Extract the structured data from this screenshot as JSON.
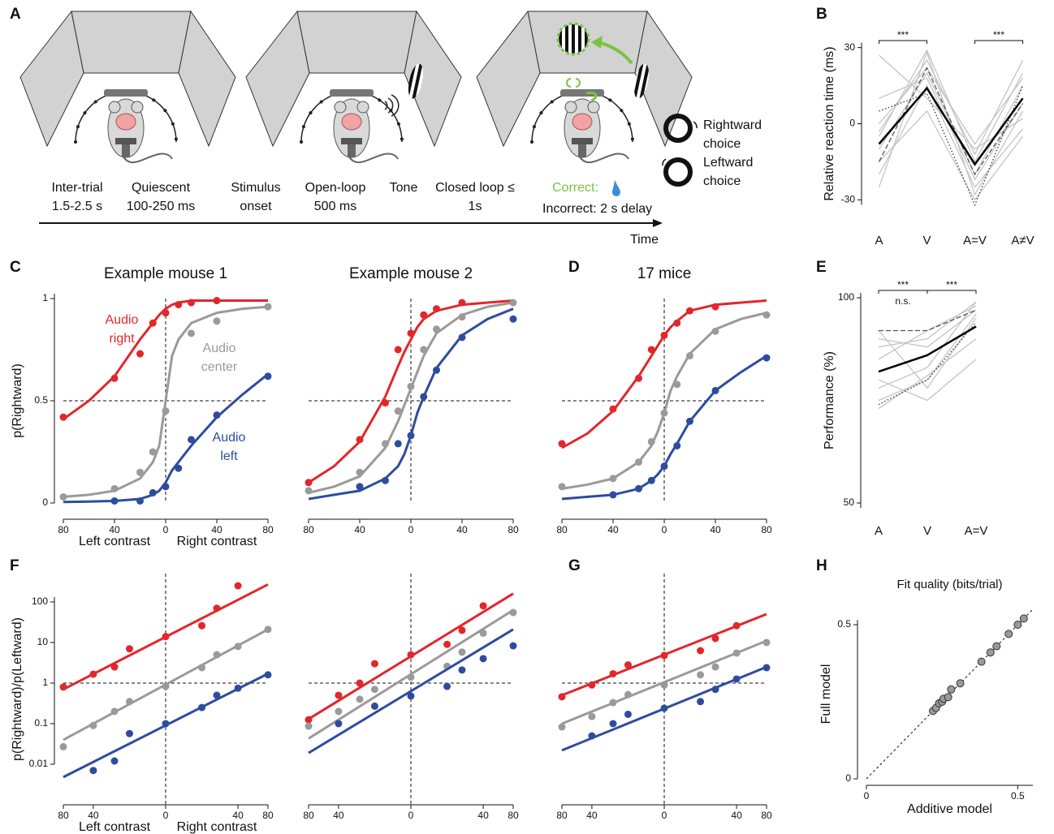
{
  "panel_a": {
    "label": "A",
    "timeline": [
      "Inter-trial 1.5-2.5 s",
      "Quiescent 100-250 ms",
      "Stimulus onset",
      "Open-loop 500 ms",
      "Tone",
      "Closed loop ≤ 1s"
    ],
    "correct": "Correct:",
    "incorrect": "Incorrect: 2 s delay",
    "time": "Time",
    "choices": [
      "Rightward choice",
      "Leftward choice"
    ]
  },
  "chart_data": [
    {
      "type": "line",
      "panel": "B",
      "y_label": "Relative reaction time (ms)",
      "categories": [
        "A",
        "V",
        "A=V",
        "A≠V"
      ],
      "ylim": [
        -35,
        35
      ],
      "yticks": [
        -30,
        0,
        30
      ],
      "annotations": [
        {
          "text": "***",
          "span": [
            0,
            1
          ]
        },
        {
          "text": "***",
          "span": [
            2,
            3
          ]
        }
      ],
      "series": [
        {
          "color": "#c4c4c4",
          "values": [
            -25,
            28,
            -28,
            5
          ]
        },
        {
          "color": "#c4c4c4",
          "values": [
            -10,
            20,
            -20,
            15
          ]
        },
        {
          "color": "#c4c4c4",
          "values": [
            -3,
            25,
            -12,
            25
          ]
        },
        {
          "color": "#c4c4c4",
          "values": [
            -15,
            5,
            -30,
            -5
          ]
        },
        {
          "color": "#c4c4c4",
          "values": [
            0,
            22,
            -8,
            18
          ]
        },
        {
          "color": "#c4c4c4",
          "values": [
            10,
            18,
            -22,
            8
          ]
        },
        {
          "color": "#c4c4c4",
          "values": [
            -5,
            29,
            -15,
            20
          ]
        },
        {
          "color": "#c4c4c4",
          "values": [
            27,
            10,
            -10,
            2
          ]
        },
        {
          "color": "#c4c4c4",
          "values": [
            -20,
            15,
            -25,
            -2
          ]
        },
        {
          "color": "#555555",
          "line_style": "dashed",
          "values": [
            -15,
            22,
            -20,
            8
          ]
        },
        {
          "color": "#333333",
          "line_style": "dotted",
          "values": [
            5,
            12,
            -32,
            15
          ]
        },
        {
          "color": "#000000",
          "line_width": 2.5,
          "values": [
            -8,
            14,
            -16,
            10
          ]
        }
      ]
    },
    {
      "type": "scatter",
      "panel": "C",
      "title": "Example mouse 1",
      "y_label": "p(Rightward)",
      "x_label_left": "Left contrast",
      "x_label_right": "Right contrast",
      "x": [
        -80,
        -40,
        -20,
        -10,
        0,
        10,
        20,
        40,
        80
      ],
      "fit_x": [
        -80,
        -60,
        -40,
        -20,
        -10,
        -5,
        0,
        5,
        10,
        20,
        40,
        60,
        80
      ],
      "xlim": [
        -80,
        80
      ],
      "xticks": [
        {
          "value": -80,
          "label": "80"
        },
        {
          "value": -40,
          "label": "40"
        },
        0,
        40,
        80
      ],
      "ylim": [
        0,
        1
      ],
      "yticks": [
        0,
        0.5,
        1
      ],
      "hline": 0.5,
      "vline": 0,
      "series": [
        {
          "name": "Audio right",
          "color": "#e3262b",
          "values": [
            0.42,
            0.61,
            0.73,
            0.88,
            0.93,
            0.97,
            0.98,
            0.99,
            null
          ],
          "fit": [
            0.41,
            0.5,
            0.62,
            0.8,
            0.88,
            0.92,
            0.95,
            0.97,
            0.98,
            0.99,
            0.99,
            0.99,
            0.99
          ]
        },
        {
          "name": "Audio center",
          "color": "#9a9a9a",
          "values": [
            0.03,
            0.07,
            0.15,
            0.25,
            0.45,
            null,
            0.83,
            0.89,
            0.96
          ],
          "fit": [
            0.03,
            0.04,
            0.06,
            0.12,
            0.2,
            0.28,
            0.5,
            0.72,
            0.8,
            0.88,
            0.93,
            0.95,
            0.96
          ]
        },
        {
          "name": "Audio left",
          "color": "#2e4c9f",
          "values": [
            null,
            0.01,
            0.01,
            0.05,
            0.08,
            0.17,
            0.31,
            0.43,
            0.62
          ],
          "fit": [
            0.005,
            0.007,
            0.01,
            0.02,
            0.04,
            0.06,
            0.1,
            0.16,
            0.2,
            0.28,
            0.42,
            0.53,
            0.63
          ]
        }
      ]
    },
    {
      "type": "scatter",
      "title": "Example mouse 2",
      "x": [
        -80,
        -40,
        -20,
        -10,
        0,
        10,
        20,
        40,
        80
      ],
      "fit_x": [
        -80,
        -60,
        -40,
        -20,
        -10,
        -5,
        0,
        5,
        10,
        20,
        40,
        60,
        80
      ],
      "xlim": [
        -80,
        80
      ],
      "xticks": [
        {
          "value": -80,
          "label": "80"
        },
        {
          "value": -40,
          "label": "40"
        },
        0,
        40,
        80
      ],
      "ylim": [
        0,
        1
      ],
      "hline": 0.5,
      "vline": 0,
      "series": [
        {
          "color": "#e3262b",
          "values": [
            0.1,
            0.31,
            0.49,
            0.75,
            0.83,
            0.92,
            0.95,
            0.98,
            null
          ],
          "fit": [
            0.1,
            0.18,
            0.3,
            0.52,
            0.67,
            0.74,
            0.8,
            0.86,
            0.9,
            0.94,
            0.97,
            0.98,
            0.99
          ]
        },
        {
          "color": "#9a9a9a",
          "values": [
            0.06,
            0.15,
            0.29,
            0.45,
            0.57,
            0.75,
            0.85,
            0.91,
            0.98
          ],
          "fit": [
            0.05,
            0.08,
            0.13,
            0.27,
            0.4,
            0.48,
            0.56,
            0.64,
            0.72,
            0.83,
            0.92,
            0.96,
            0.98
          ]
        },
        {
          "color": "#2e4c9f",
          "values": [
            null,
            0.08,
            0.11,
            0.29,
            0.33,
            0.52,
            0.65,
            0.81,
            0.9
          ],
          "fit": [
            0.02,
            0.04,
            0.06,
            0.12,
            0.18,
            0.24,
            0.33,
            0.44,
            0.52,
            0.66,
            0.82,
            0.9,
            0.95
          ]
        }
      ]
    },
    {
      "type": "scatter",
      "panel": "D",
      "title": "17 mice",
      "x": [
        -80,
        -40,
        -20,
        -10,
        0,
        10,
        20,
        40,
        80
      ],
      "fit_x": [
        -80,
        -60,
        -40,
        -20,
        -10,
        -5,
        0,
        5,
        10,
        20,
        40,
        60,
        80
      ],
      "xlim": [
        -80,
        80
      ],
      "xticks": [
        {
          "value": -80,
          "label": "80"
        },
        {
          "value": -40,
          "label": "40"
        },
        0,
        40,
        80
      ],
      "ylim": [
        0,
        1
      ],
      "hline": 0.5,
      "vline": 0,
      "series": [
        {
          "color": "#e3262b",
          "values": [
            0.29,
            0.46,
            0.61,
            0.75,
            0.82,
            0.88,
            0.94,
            0.96,
            null
          ],
          "fit": [
            0.27,
            0.34,
            0.45,
            0.62,
            0.72,
            0.77,
            0.82,
            0.86,
            0.89,
            0.94,
            0.97,
            0.98,
            0.99
          ]
        },
        {
          "color": "#9a9a9a",
          "values": [
            0.08,
            0.12,
            0.2,
            0.3,
            0.44,
            0.58,
            0.72,
            0.84,
            0.92
          ],
          "fit": [
            0.07,
            0.09,
            0.12,
            0.2,
            0.28,
            0.35,
            0.44,
            0.55,
            0.62,
            0.73,
            0.85,
            0.9,
            0.93
          ]
        },
        {
          "color": "#2e4c9f",
          "values": [
            null,
            0.04,
            0.07,
            0.11,
            0.18,
            0.28,
            0.4,
            0.55,
            0.71
          ],
          "fit": [
            0.02,
            0.03,
            0.04,
            0.07,
            0.11,
            0.14,
            0.18,
            0.24,
            0.29,
            0.4,
            0.55,
            0.64,
            0.72
          ]
        }
      ]
    },
    {
      "type": "line",
      "panel": "E",
      "y_label": "Performance (%)",
      "categories": [
        "A",
        "V",
        "A=V"
      ],
      "ylim": [
        50,
        100
      ],
      "yticks": [
        50,
        100
      ],
      "annotations": [
        {
          "text": "***",
          "span": [
            0,
            1
          ]
        },
        {
          "text": "***",
          "span": [
            1,
            2
          ]
        },
        {
          "text": "n.s.",
          "span": [
            0,
            1
          ]
        }
      ],
      "series": [
        {
          "color": "#c4c4c4",
          "values": [
            90,
            88,
            97
          ]
        },
        {
          "color": "#c4c4c4",
          "values": [
            75,
            80,
            96
          ]
        },
        {
          "color": "#c4c4c4",
          "values": [
            78,
            83,
            99
          ]
        },
        {
          "color": "#c4c4c4",
          "values": [
            92,
            78,
            95
          ]
        },
        {
          "color": "#c4c4c4",
          "values": [
            85,
            92,
            98
          ]
        },
        {
          "color": "#c4c4c4",
          "values": [
            73,
            81,
            90
          ]
        },
        {
          "color": "#c4c4c4",
          "values": [
            80,
            75,
            85
          ]
        },
        {
          "color": "#c4c4c4",
          "values": [
            88,
            90,
            99
          ]
        },
        {
          "color": "#555555",
          "line_style": "dashed",
          "values": [
            92,
            92,
            97
          ]
        },
        {
          "color": "#333333",
          "line_style": "dotted",
          "values": [
            74,
            80,
            94
          ]
        },
        {
          "color": "#000000",
          "line_width": 2.5,
          "values": [
            82,
            86,
            93
          ]
        }
      ]
    },
    {
      "type": "scatter",
      "panel": "F",
      "y_label": "p(Rightward)/p(Leftward)",
      "x_label_left": "Left contrast",
      "x_label_right": "Right contrast",
      "xscale": "sqrt",
      "ylog": true,
      "x": [
        -80,
        -40,
        -20,
        -10,
        0,
        10,
        20,
        40,
        80
      ],
      "fit_x": [
        -80,
        80
      ],
      "xlim": [
        -80,
        80
      ],
      "xticks": [
        {
          "value": -80,
          "label": "80"
        },
        {
          "value": -40,
          "label": "40"
        },
        0,
        40,
        80
      ],
      "ylim": [
        0.001,
        500
      ],
      "yticks": [
        0.01,
        0.1,
        1,
        10,
        100
      ],
      "hline": 1,
      "vline": 0,
      "series": [
        {
          "color": "#e3262b",
          "values": [
            0.8,
            1.66,
            2.5,
            7,
            14,
            26,
            70,
            250,
            null
          ],
          "fit": [
            0.7,
            270
          ]
        },
        {
          "color": "#9a9a9a",
          "values": [
            0.027,
            0.09,
            0.2,
            0.35,
            0.83,
            2.4,
            5,
            8,
            21
          ],
          "fit": [
            0.04,
            21
          ]
        },
        {
          "color": "#2e4c9f",
          "values": [
            null,
            0.007,
            0.012,
            0.057,
            0.1,
            0.25,
            0.5,
            0.75,
            1.6
          ],
          "fit": [
            0.0048,
            1.7
          ]
        }
      ]
    },
    {
      "type": "scatter",
      "xscale": "sqrt",
      "ylog": true,
      "x": [
        -80,
        -40,
        -20,
        -10,
        0,
        10,
        20,
        40,
        80
      ],
      "fit_x": [
        -80,
        80
      ],
      "xlim": [
        -80,
        80
      ],
      "xticks": [
        {
          "value": -80,
          "label": "80"
        },
        {
          "value": -40,
          "label": "40"
        },
        0,
        40,
        80
      ],
      "ylim": [
        0.001,
        500
      ],
      "hline": 1,
      "vline": 0,
      "series": [
        {
          "color": "#e3262b",
          "values": [
            0.125,
            0.5,
            1,
            3,
            5,
            9,
            20,
            80,
            null
          ],
          "fit": [
            0.13,
            160
          ]
        },
        {
          "color": "#9a9a9a",
          "values": [
            0.087,
            0.2,
            0.4,
            0.7,
            1.4,
            2.6,
            5.8,
            17,
            55
          ],
          "fit": [
            0.043,
            63
          ]
        },
        {
          "color": "#2e4c9f",
          "values": [
            null,
            0.1,
            null,
            0.27,
            0.48,
            0.83,
            2.1,
            4,
            8.3
          ],
          "fit": [
            0.019,
            21
          ]
        }
      ]
    },
    {
      "type": "scatter",
      "panel": "G",
      "xscale": "sqrt",
      "ylog": true,
      "x": [
        -80,
        -40,
        -20,
        -10,
        0,
        10,
        20,
        40,
        80
      ],
      "fit_x": [
        -80,
        80
      ],
      "xlim": [
        -80,
        80
      ],
      "xticks": [
        {
          "value": -80,
          "label": "80"
        },
        {
          "value": -40,
          "label": "40"
        },
        0,
        40,
        80
      ],
      "ylim": [
        0.001,
        500
      ],
      "hline": 1,
      "vline": 0,
      "series": [
        {
          "color": "#e3262b",
          "values": [
            0.46,
            0.9,
            1.7,
            2.8,
            4.8,
            6.3,
            12.6,
            26,
            null
          ],
          "fit": [
            0.5,
            50
          ]
        },
        {
          "color": "#9a9a9a",
          "values": [
            0.083,
            0.15,
            0.33,
            0.52,
            0.9,
            1.6,
            2.5,
            5.5,
            10
          ],
          "fit": [
            0.1,
            11
          ]
        },
        {
          "color": "#2e4c9f",
          "values": [
            null,
            0.05,
            0.1,
            0.17,
            0.24,
            0.35,
            0.7,
            1.26,
            2.4
          ],
          "fit": [
            0.022,
            2.5
          ]
        }
      ]
    },
    {
      "type": "scatter",
      "panel": "H",
      "title": "Fit quality (bits/trial)",
      "x_label": "Additive model",
      "y_label": "Full model",
      "xlim": [
        0,
        0.55
      ],
      "ylim": [
        0,
        0.55
      ],
      "xticks": [
        0,
        0.5
      ],
      "yticks": [
        0,
        0.5
      ],
      "diagonal": true,
      "x": [
        0.22,
        0.23,
        0.24,
        0.25,
        0.255,
        0.27,
        0.28,
        0.31,
        0.38,
        0.41,
        0.43,
        0.47,
        0.5,
        0.52
      ],
      "series": [
        {
          "color": "#9a9a9a",
          "values": [
            0.22,
            0.23,
            0.245,
            0.25,
            0.26,
            0.265,
            0.29,
            0.31,
            0.38,
            0.41,
            0.43,
            0.47,
            0.5,
            0.52
          ]
        }
      ]
    }
  ]
}
